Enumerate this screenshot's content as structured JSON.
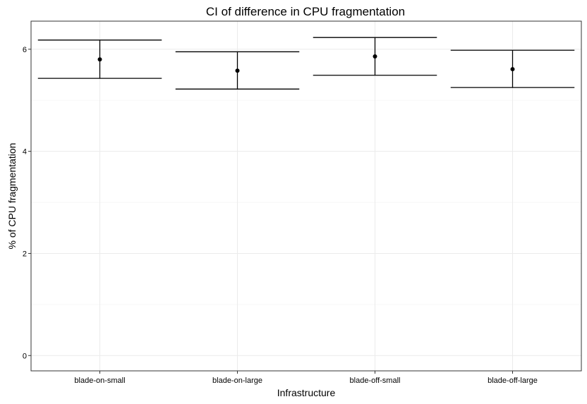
{
  "chart_data": {
    "type": "errorbar",
    "title": "CI of difference in CPU fragmentation",
    "xlabel": "Infrastructure",
    "ylabel": "% of CPU fragmentation",
    "categories": [
      "blade-on-small",
      "blade-on-large",
      "blade-off-small",
      "blade-off-large"
    ],
    "series": [
      {
        "estimate": [
          5.8,
          5.58,
          5.86,
          5.61
        ],
        "lower": [
          5.43,
          5.22,
          5.49,
          5.25
        ],
        "upper": [
          6.18,
          5.95,
          6.23,
          5.98
        ]
      }
    ],
    "ylim": [
      -0.3,
      6.55
    ],
    "yticks": [
      0,
      2,
      4,
      6
    ],
    "grid": true,
    "legend": "none"
  }
}
